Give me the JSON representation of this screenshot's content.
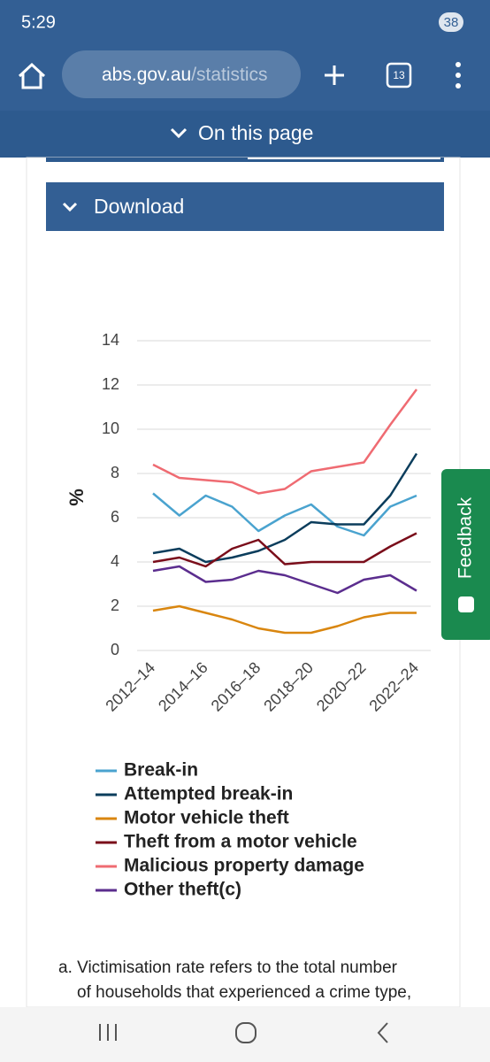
{
  "ui": {
    "status_time": "5:29",
    "battery": "38",
    "url_host": "abs.gov.au",
    "url_path": "/statistics",
    "tab_count": "13",
    "on_this_page": "On this page",
    "download": "Download",
    "feedback": "Feedback",
    "footnote_line1": "a. Victimisation rate refers to the total number",
    "footnote_line2": "of households that experienced a crime type,"
  },
  "chart_data": {
    "type": "line",
    "y_label": "%",
    "categories": [
      "2012–14",
      null,
      "2014–16",
      null,
      "2016–18",
      null,
      "2018–20",
      null,
      "2020–22",
      null,
      "2022–24"
    ],
    "ylim": [
      0,
      14
    ],
    "yticks": [
      0,
      2,
      4,
      6,
      8,
      10,
      12,
      14
    ],
    "grid": true,
    "series": [
      {
        "name": "Break-in",
        "color": "#4aa3cf",
        "values": [
          7.1,
          6.1,
          7.0,
          6.5,
          5.4,
          6.1,
          6.6,
          5.6,
          5.2,
          6.5,
          7.0
        ]
      },
      {
        "name": "Attempted break-in",
        "color": "#0b3d5c",
        "values": [
          4.4,
          4.6,
          4.0,
          4.2,
          4.5,
          5.0,
          5.8,
          5.7,
          5.7,
          7.0,
          8.9
        ]
      },
      {
        "name": "Motor vehicle theft",
        "color": "#d9860f",
        "values": [
          1.8,
          2.0,
          1.7,
          1.4,
          1.0,
          0.8,
          0.8,
          1.1,
          1.5,
          1.7,
          1.7
        ]
      },
      {
        "name": "Theft from a motor vehicle",
        "color": "#7a0d1a",
        "values": [
          4.0,
          4.2,
          3.8,
          4.6,
          5.0,
          3.9,
          4.0,
          4.0,
          4.0,
          4.7,
          5.3
        ]
      },
      {
        "name": "Malicious property damage",
        "color": "#ef6b72",
        "values": [
          8.4,
          7.8,
          7.7,
          7.6,
          7.1,
          7.3,
          8.1,
          8.3,
          8.5,
          10.2,
          11.8
        ]
      },
      {
        "name": "Other theft(c)",
        "color": "#5b2d8e",
        "values": [
          3.6,
          3.8,
          3.1,
          3.2,
          3.6,
          3.4,
          3.0,
          2.6,
          3.2,
          3.4,
          2.7
        ]
      }
    ]
  }
}
